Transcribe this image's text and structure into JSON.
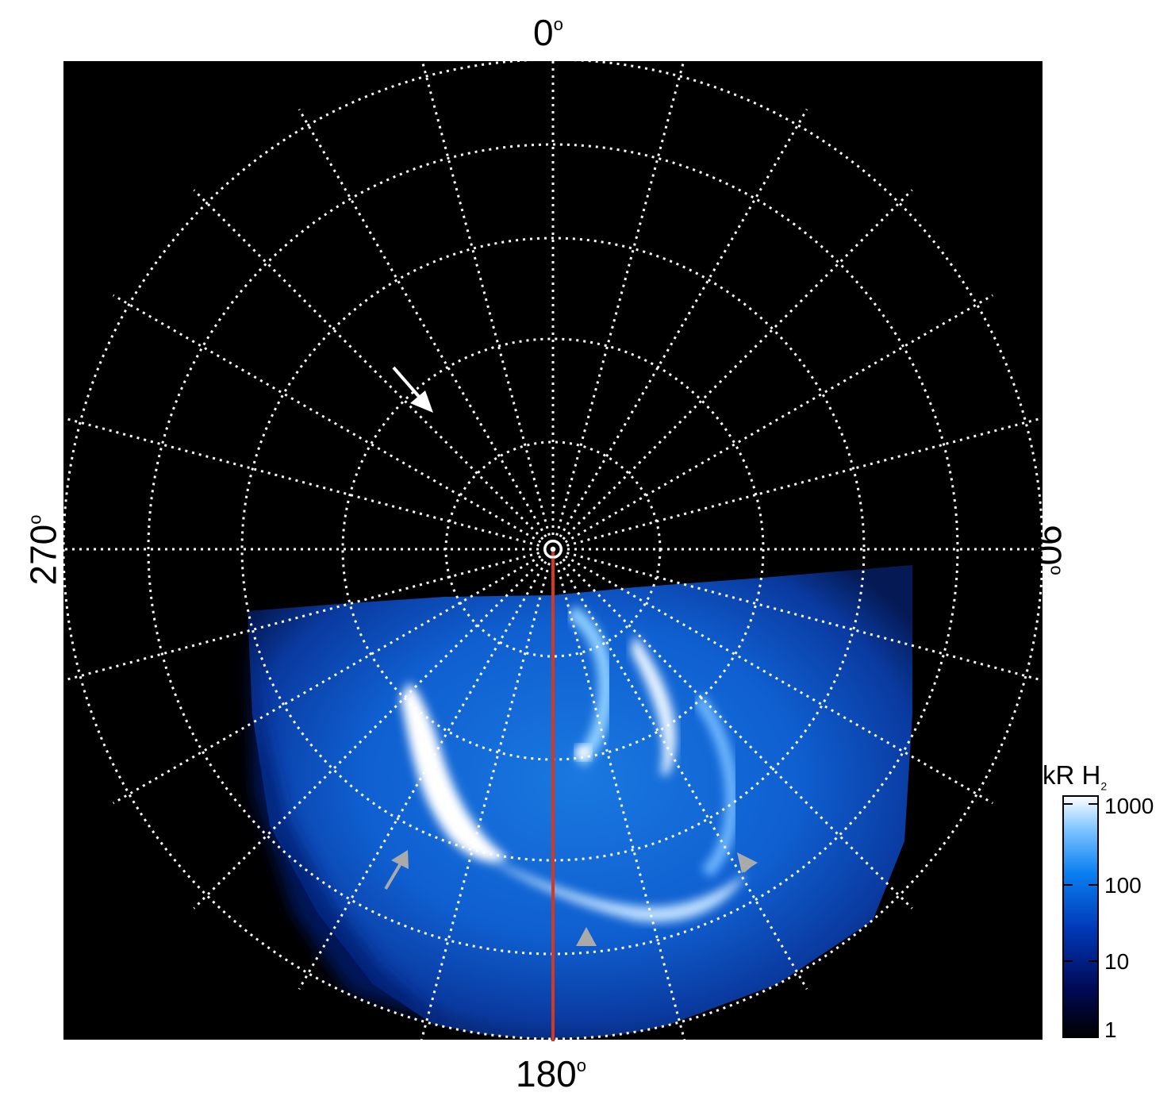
{
  "labels": {
    "top": "0",
    "bottom": "180",
    "left": "270",
    "right": "90",
    "degree_symbol": "o"
  },
  "colorbar": {
    "title": "kR H",
    "title_subscript": "2",
    "ticks": [
      "1000",
      "100",
      "10",
      "1"
    ],
    "colors": [
      "#000000",
      "#000a55",
      "#0038b8",
      "#0a7ff0",
      "#7cc4ff",
      "#ffffff"
    ]
  },
  "map": {
    "background": "#000000",
    "grid_color": "#ffffff",
    "meridian_color": "#d2391f",
    "auroral_blue": "#1f7fe6",
    "auroral_bright": "#ffffff",
    "arrow_white": "#ffffff",
    "arrow_gray": "#aaaaaa"
  }
}
